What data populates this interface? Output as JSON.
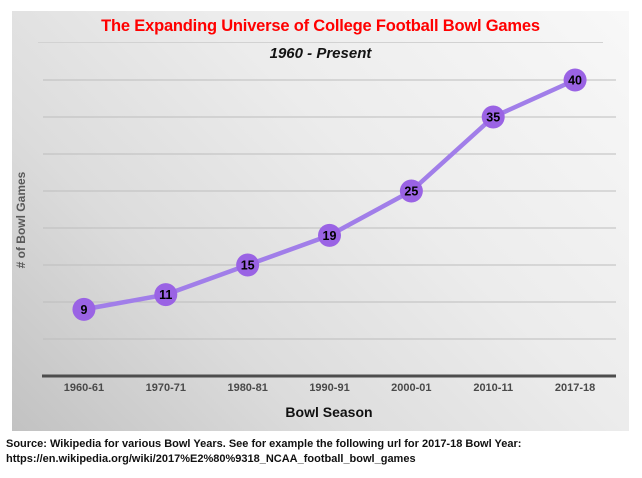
{
  "slide": {
    "title_color": "#ff0000"
  },
  "chart_data": {
    "type": "line",
    "title": "The Expanding Universe of College Football Bowl Games",
    "subtitle": "1960 - Present",
    "categories": [
      "1960-61",
      "1970-71",
      "1980-81",
      "1990-91",
      "2000-01",
      "2010-11",
      "2017-18"
    ],
    "values": [
      9,
      11,
      15,
      19,
      25,
      35,
      40
    ],
    "data_labels": [
      "9",
      "11",
      "15",
      "19",
      "25",
      "35",
      "40"
    ],
    "data_label_position": "center-of-marker",
    "xlabel": "Bowl Season",
    "ylabel": "# of Bowl Games",
    "ylim": [
      0,
      40
    ],
    "grid_step": 5,
    "grid": true,
    "y_tick_labels_shown": false,
    "legend": false,
    "colors": {
      "line": "#a17ee9",
      "marker": "#9a63e4",
      "data_label": "#000000",
      "axis": "#4d4d4d",
      "gridline": "#bdbdbd",
      "tick_label": "#4a4a4a",
      "title": "#ff0000"
    }
  },
  "source": {
    "line1": "Source: Wikipedia for various Bowl Years. See for example the following url for 2017-18 Bowl Year:",
    "line2": "https://en.wikipedia.org/wiki/2017%E2%80%9318_NCAA_football_bowl_games"
  }
}
